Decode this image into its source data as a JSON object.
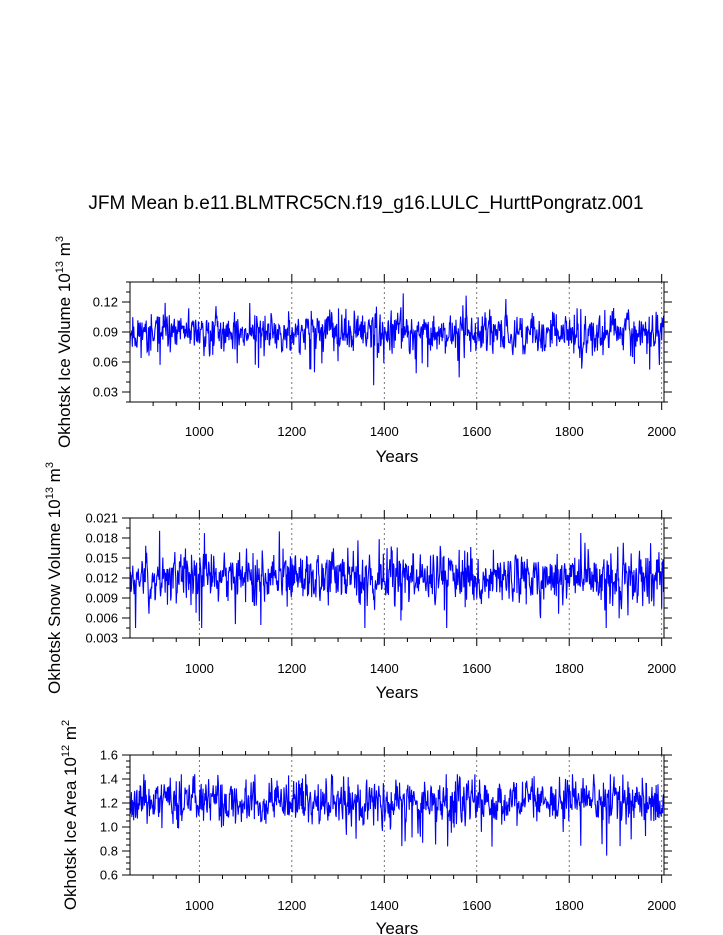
{
  "title": "JFM Mean b.e11.BLMTRC5CN.f19_g16.LULC_HurttPongratz.001",
  "series_color": "#0000ff",
  "chart_data": [
    {
      "type": "line",
      "name": "ice-volume",
      "xlabel": "Years",
      "ylabel": {
        "text": "Okhotsk Ice Volume 10",
        "exp": "13",
        "unit": " m",
        "unit_exp": "3"
      },
      "xlim": [
        850,
        2005
      ],
      "ylim": [
        0.02,
        0.14
      ],
      "xticks": [
        1000,
        1200,
        1400,
        1600,
        1800,
        2000
      ],
      "xtick_labels": [
        "1000",
        "1200",
        "1400",
        "1600",
        "1800",
        "2000"
      ],
      "yticks": [
        0.03,
        0.06,
        0.09,
        0.12
      ],
      "ytick_labels": [
        "0.03",
        "0.06",
        "0.09",
        "0.12"
      ],
      "yminor_step": 0.01,
      "gen": {
        "seed": 11,
        "mean": 0.089,
        "amp": 0.012,
        "min": 0.035,
        "max": 0.133
      }
    },
    {
      "type": "line",
      "name": "snow-volume",
      "xlabel": "Years",
      "ylabel": {
        "text": "Okhotsk Snow Volume 10",
        "exp": "13",
        "unit": " m",
        "unit_exp": "3"
      },
      "xlim": [
        850,
        2005
      ],
      "ylim": [
        0.003,
        0.021
      ],
      "xticks": [
        1000,
        1200,
        1400,
        1600,
        1800,
        2000
      ],
      "xtick_labels": [
        "1000",
        "1200",
        "1400",
        "1600",
        "1800",
        "2000"
      ],
      "yticks": [
        0.003,
        0.006,
        0.009,
        0.012,
        0.015,
        0.018,
        0.021
      ],
      "ytick_labels": [
        "0.003",
        "0.006",
        "0.009",
        "0.012",
        "0.015",
        "0.018",
        "0.021"
      ],
      "yminor_step": 0.0015,
      "gen": {
        "seed": 23,
        "mean": 0.0122,
        "amp": 0.0022,
        "min": 0.0045,
        "max": 0.0205
      }
    },
    {
      "type": "line",
      "name": "ice-area",
      "xlabel": "Years",
      "ylabel": {
        "text": "Okhotsk Ice Area 10",
        "exp": "12",
        "unit": " m",
        "unit_exp": "2"
      },
      "xlim": [
        850,
        2005
      ],
      "ylim": [
        0.6,
        1.6
      ],
      "xticks": [
        1000,
        1200,
        1400,
        1600,
        1800,
        2000
      ],
      "xtick_labels": [
        "1000",
        "1200",
        "1400",
        "1600",
        "1800",
        "2000"
      ],
      "yticks": [
        0.6,
        0.8,
        1.0,
        1.2,
        1.4,
        1.6
      ],
      "ytick_labels": [
        "0.6",
        "0.8",
        "1.0",
        "1.2",
        "1.4",
        "1.6"
      ],
      "yminor_step": 0.05,
      "gen": {
        "seed": 37,
        "mean": 1.21,
        "amp": 0.11,
        "min": 0.72,
        "max": 1.44
      }
    }
  ]
}
